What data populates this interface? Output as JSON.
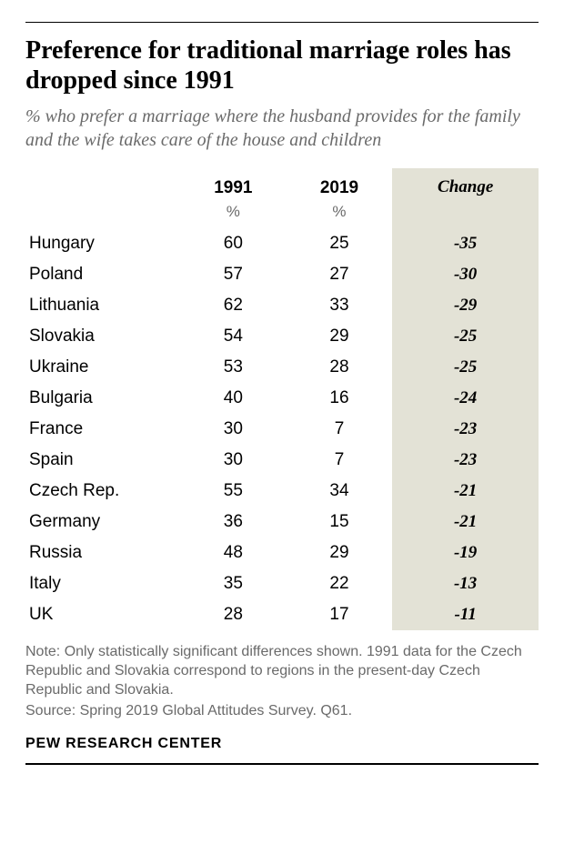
{
  "title": "Preference for traditional marriage roles has dropped since 1991",
  "subtitle": "% who prefer a marriage where the husband provides for the family and the wife takes care of the house and children",
  "table": {
    "columns": {
      "year1": "1991",
      "year2": "2019",
      "change": "Change",
      "unit": "%"
    },
    "col_widths": {
      "country": 170,
      "year1": 130,
      "year2": 130,
      "change": 134
    },
    "change_bg": "#e3e2d6",
    "rows": [
      {
        "country": "Hungary",
        "y1": "60",
        "y2": "25",
        "change": "-35"
      },
      {
        "country": "Poland",
        "y1": "57",
        "y2": "27",
        "change": "-30"
      },
      {
        "country": "Lithuania",
        "y1": "62",
        "y2": "33",
        "change": "-29"
      },
      {
        "country": "Slovakia",
        "y1": "54",
        "y2": "29",
        "change": "-25"
      },
      {
        "country": "Ukraine",
        "y1": "53",
        "y2": "28",
        "change": "-25"
      },
      {
        "country": "Bulgaria",
        "y1": "40",
        "y2": "16",
        "change": "-24"
      },
      {
        "country": "France",
        "y1": "30",
        "y2": "7",
        "change": "-23"
      },
      {
        "country": "Spain",
        "y1": "30",
        "y2": "7",
        "change": "-23"
      },
      {
        "country": "Czech Rep.",
        "y1": "55",
        "y2": "34",
        "change": "-21"
      },
      {
        "country": "Germany",
        "y1": "36",
        "y2": "15",
        "change": "-21"
      },
      {
        "country": "Russia",
        "y1": "48",
        "y2": "29",
        "change": "-19"
      },
      {
        "country": "Italy",
        "y1": "35",
        "y2": "22",
        "change": "-13"
      },
      {
        "country": "UK",
        "y1": "28",
        "y2": "17",
        "change": "-11"
      }
    ]
  },
  "note": "Note: Only statistically significant differences shown. 1991 data for the Czech Republic and Slovakia correspond to regions in the present-day Czech Republic and Slovakia.",
  "source": "Source: Spring 2019 Global Attitudes Survey. Q61.",
  "brand": "PEW RESEARCH CENTER",
  "colors": {
    "text": "#000000",
    "muted": "#6a6a6a",
    "background": "#ffffff"
  },
  "typography": {
    "title_fontsize": 28,
    "subtitle_fontsize": 20,
    "body_fontsize": 19,
    "note_fontsize": 16
  }
}
